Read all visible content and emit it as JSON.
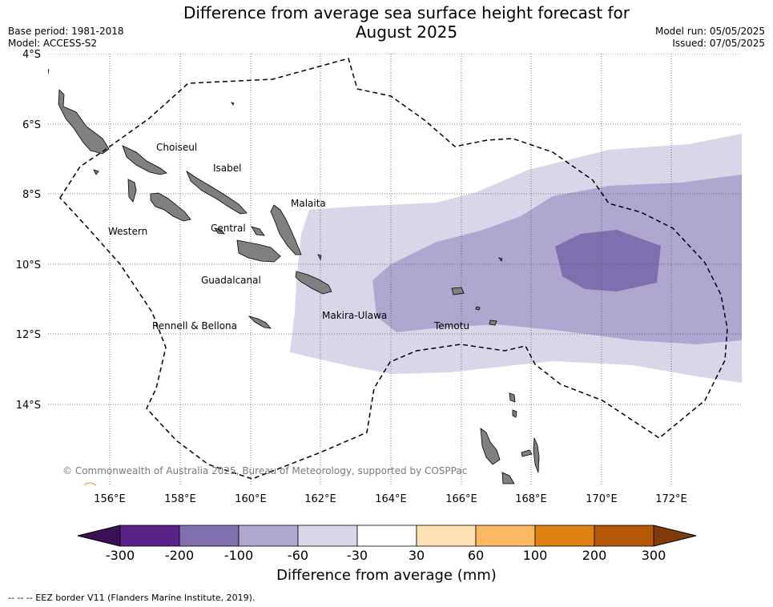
{
  "header": {
    "title_line1": "Difference from average sea surface height forecast for",
    "title_line2": "August 2025",
    "base_period": "Base period: 1981-2018",
    "model": "Model: ACCESS-S2",
    "model_run": "Model run: 05/05/2025",
    "issued": "Issued: 07/05/2025"
  },
  "map": {
    "lat_labels": [
      "4°S",
      "6°S",
      "8°S",
      "10°S",
      "12°S",
      "14°S"
    ],
    "lon_labels": [
      "156°E",
      "158°E",
      "160°E",
      "162°E",
      "164°E",
      "166°E",
      "168°E",
      "170°E",
      "172°E"
    ],
    "land_color": "#808080",
    "regions": [
      "Choiseul",
      "Isabel",
      "Malaita",
      "Western",
      "Central",
      "Guadalcanal",
      "Makira-Ulawa",
      "Temotu",
      "Rennell & Bellona"
    ],
    "copyright": "© Commonwealth of Australia 2025, Bureau of Meteorology, supported by COSPPac"
  },
  "chart_data": {
    "type": "heatmap",
    "title": "Difference from average sea surface height forecast for August 2025",
    "colorbar_label": "Difference from average (mm)",
    "bins": [
      -300,
      -200,
      -100,
      -60,
      -30,
      30,
      60,
      100,
      200,
      300
    ],
    "bin_colors": [
      "#5a2189",
      "#7f6fae",
      "#afa7d0",
      "#d8d7e9",
      "#ffffff",
      "#ffdfb4",
      "#fdb863",
      "#e08214",
      "#b35806"
    ],
    "under_color": "#3b0f55",
    "over_color": "#7f3b08",
    "levels_present": [
      {
        "range": [
          -60,
          -30
        ],
        "color": "#d8d7e9"
      },
      {
        "range": [
          -100,
          -60
        ],
        "color": "#afa7d0"
      },
      {
        "range": [
          -200,
          -100
        ],
        "color": "#7f6fae"
      }
    ]
  },
  "legend": {
    "ticks": [
      "-300",
      "-200",
      "-100",
      "-60",
      "-30",
      "30",
      "60",
      "100",
      "200",
      "300"
    ],
    "title": "Difference from average (mm)"
  },
  "footer": {
    "eez_note": "--  --  -- EEZ border V11 (Flanders Marine Institute, 2019)."
  }
}
